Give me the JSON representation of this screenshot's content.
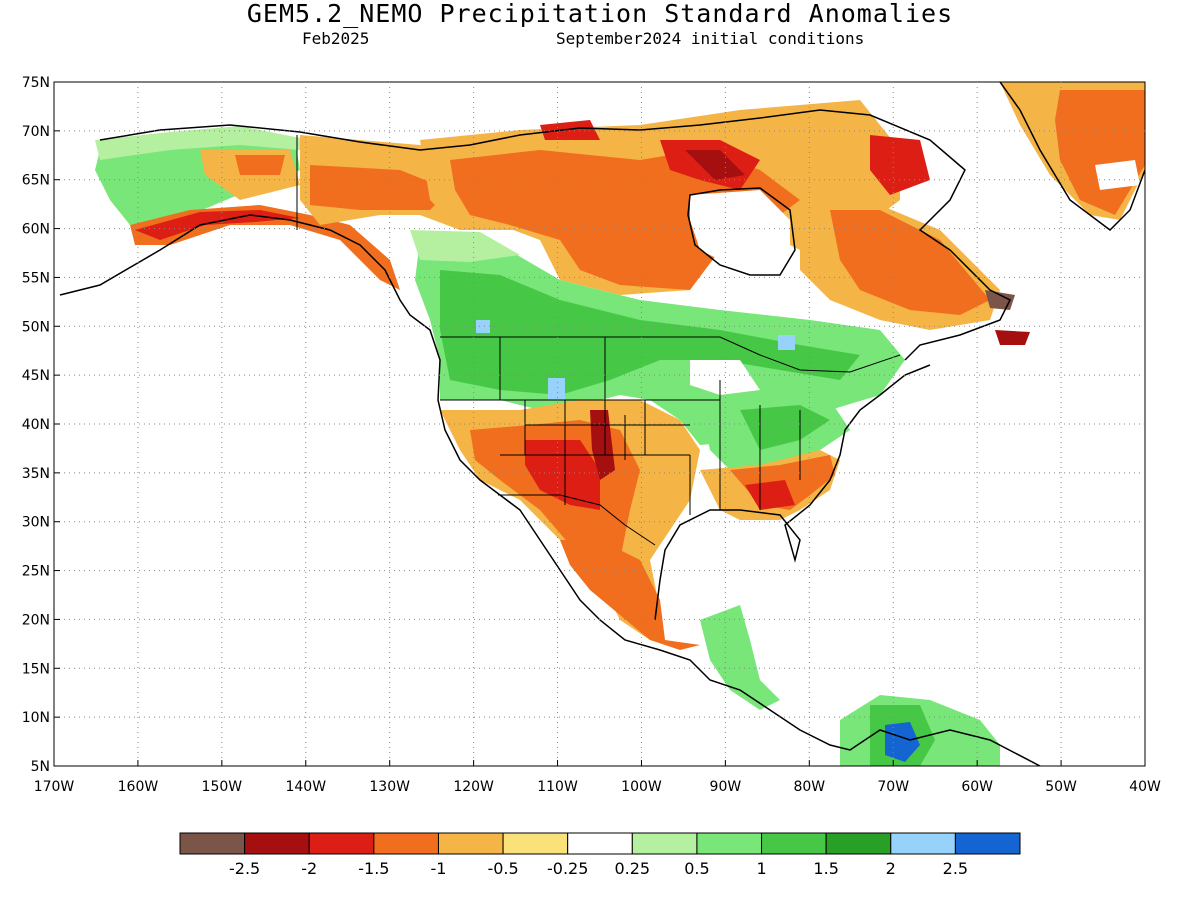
{
  "title": "GEM5.2_NEMO Precipitation Standard Anomalies",
  "valid_month": "Feb2025",
  "init_text": "September2024 initial conditions",
  "map": {
    "lat_labels": [
      "75N",
      "70N",
      "65N",
      "60N",
      "55N",
      "50N",
      "45N",
      "40N",
      "35N",
      "30N",
      "25N",
      "20N",
      "15N",
      "10N",
      "5N"
    ],
    "lon_labels": [
      "170W",
      "160W",
      "150W",
      "140W",
      "130W",
      "120W",
      "110W",
      "100W",
      "90W",
      "80W",
      "70W",
      "60W",
      "50W",
      "40W"
    ],
    "lat_range": [
      5,
      75
    ],
    "lon_range": [
      -170,
      -40
    ],
    "grid": "dotted"
  },
  "colorbar": {
    "colors": [
      "#7a5548",
      "#a50f0f",
      "#dc1e14",
      "#f06e1e",
      "#f5b446",
      "#fae17a",
      "#ffffff",
      "#b4f0a0",
      "#78e678",
      "#46c846",
      "#28a028",
      "#96d2fa",
      "#1464d2"
    ],
    "tick_labels": [
      "-2.5",
      "-2",
      "-1.5",
      "-1",
      "-0.5",
      "-0.25",
      "0.25",
      "0.5",
      "1",
      "1.5",
      "2",
      "2.5"
    ]
  }
}
